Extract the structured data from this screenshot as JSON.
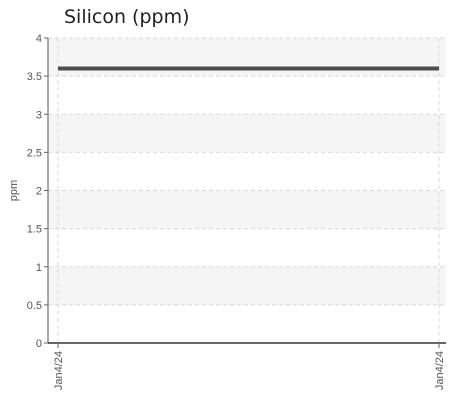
{
  "chart_data": {
    "type": "line",
    "title": "Silicon (ppm)",
    "xlabel": "",
    "ylabel": "ppm",
    "x": [
      "Jan4/24",
      "Jan4/24"
    ],
    "series": [
      {
        "values": [
          3.6,
          3.6
        ],
        "color": "#4d4d4d"
      }
    ],
    "ylim": [
      0,
      4
    ],
    "yticks": [
      "0",
      "0.5",
      "1",
      "1.5",
      "2",
      "2.5",
      "3",
      "3.5",
      "4"
    ],
    "grid": true,
    "band_colors": [
      "#ffffff",
      "#f5f5f5"
    ]
  }
}
